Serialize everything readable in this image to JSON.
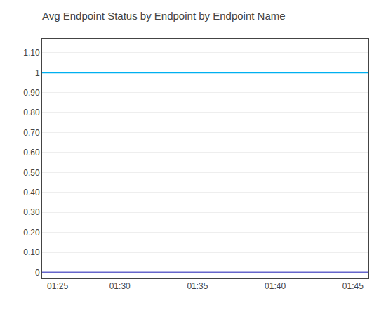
{
  "chart_data": {
    "type": "hline",
    "title": "Avg Endpoint Status by Endpoint by Endpoint Name",
    "series": [
      {
        "color": "#00b0f0",
        "values": [
          1.0
        ]
      },
      {
        "color": "#6666cc",
        "values": [
          0.0
        ]
      }
    ],
    "xlim": [
      0,
      21
    ],
    "xticks": [
      {
        "value": 1,
        "label": "01:25"
      },
      {
        "value": 5,
        "label": "01:30"
      },
      {
        "value": 10,
        "label": "01:35"
      },
      {
        "value": 15,
        "label": "01:40"
      },
      {
        "value": 20,
        "label": "01:45"
      }
    ],
    "ylim": [
      -0.03,
      1.17
    ],
    "yticks": [
      0,
      {
        "value": 0.1,
        "label": "0.10"
      },
      {
        "value": 0.2,
        "label": "0.20"
      },
      {
        "value": 0.3,
        "label": "0.30"
      },
      {
        "value": 0.4,
        "label": "0.40"
      },
      {
        "value": 0.5,
        "label": "0.50"
      },
      {
        "value": 0.6,
        "label": "0.60"
      },
      {
        "value": 0.7,
        "label": "0.70"
      },
      {
        "value": 0.8,
        "label": "0.80"
      },
      {
        "value": 0.9,
        "label": "0.90"
      },
      1,
      {
        "value": 1.1,
        "label": "1.10"
      }
    ],
    "grid": "y"
  }
}
